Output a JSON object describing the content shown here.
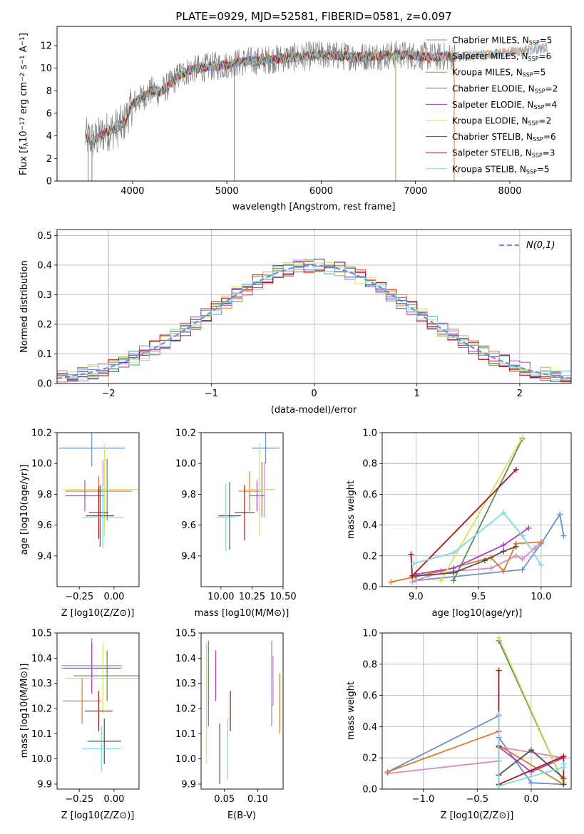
{
  "figure_title": "PLATE=0929, MJD=52581, FIBERID=0581, z=0.097",
  "colors": {
    "Chabrier MILES": "#6a8fd8",
    "Salpeter MILES": "#dd88bb",
    "Kroupa MILES": "#e07a2a",
    "Chabrier ELODIE": "#5f8a5f",
    "Salpeter ELODIE": "#b040c0",
    "Kroupa ELODIE": "#d4e25a",
    "Chabrier STELIB": "#505050",
    "Salpeter STELIB": "#aa1515",
    "Kroupa STELIB": "#7fd9e2",
    "data": "#808080",
    "gauss": "#6a8fd8"
  },
  "chart_data": [
    {
      "id": "spectrum",
      "type": "line",
      "xlabel": "wavelength [Angstrom, rest frame]",
      "ylabel": "Flux [f_λ 10^-17 erg cm^-2 s^-1 A^-1]",
      "ylabel_parts": {
        "main": "Flux [f",
        "sub": "λ",
        "mid": "10",
        "sup1": "−17",
        "unit": " erg cm",
        "sup2": "−2",
        "s": " s",
        "sup3": "−1",
        "a": " A",
        "sup4": "−1",
        "end": "]"
      },
      "xlim": [
        3200,
        8650
      ],
      "ylim": [
        0,
        13.7
      ],
      "xticks": [
        4000,
        5000,
        6000,
        7000,
        8000
      ],
      "yticks": [
        0,
        2,
        4,
        6,
        8,
        10,
        12
      ],
      "legend_position": "top-right",
      "legend": [
        {
          "label": "Chabrier MILES",
          "nssp": 5
        },
        {
          "label": "Salpeter MILES",
          "nssp": 6
        },
        {
          "label": "Kroupa MILES",
          "nssp": 5
        },
        {
          "label": "Chabrier ELODIE",
          "nssp": 2
        },
        {
          "label": "Salpeter ELODIE",
          "nssp": 4
        },
        {
          "label": "Kroupa ELODIE",
          "nssp": 2
        },
        {
          "label": "Chabrier STELIB",
          "nssp": 6
        },
        {
          "label": "Salpeter STELIB",
          "nssp": 3
        },
        {
          "label": "Kroupa STELIB",
          "nssp": 5
        }
      ],
      "nssp_label": "N",
      "nssp_sub": "SSP",
      "continuum": {
        "x": [
          3500,
          3600,
          3700,
          3800,
          3900,
          4000,
          4100,
          4200,
          4300,
          4400,
          4500,
          4600,
          4800,
          5000,
          5200,
          5400,
          5600,
          5800,
          6000,
          6200,
          6400,
          6600,
          6800,
          7000,
          7200,
          7400,
          7600,
          7800,
          8000,
          8200,
          8400
        ],
        "y": [
          3.9,
          3.6,
          4.3,
          4.6,
          5.0,
          6.8,
          7.4,
          8.0,
          7.9,
          8.6,
          9.4,
          9.8,
          10.1,
          10.3,
          10.6,
          10.7,
          10.9,
          11.0,
          11.2,
          11.1,
          11.0,
          11.1,
          11.2,
          11.1,
          11.0,
          11.0,
          11.1,
          11.2,
          11.4,
          11.6,
          11.8
        ]
      },
      "data_x_range": [
        3500,
        7420
      ]
    },
    {
      "id": "residuals",
      "type": "bar",
      "xlabel": "(data-model)/error",
      "ylabel": "Normed distribution",
      "xlim": [
        -2.5,
        2.5
      ],
      "ylim": [
        0,
        0.52
      ],
      "xticks": [
        -2,
        -1,
        0,
        1,
        2
      ],
      "yticks": [
        0.0,
        0.1,
        0.2,
        0.3,
        0.4,
        0.5
      ],
      "legend_label": "N(0,1)",
      "legend_position": "top-right",
      "grid": true
    },
    {
      "id": "age_vs_Z",
      "type": "scatter",
      "xlabel": "Z [log10(Z/Z⊙)]",
      "ylabel": "age [log10(age/yr)]",
      "xlim": [
        -0.41,
        0.18
      ],
      "ylim": [
        9.2,
        10.2
      ],
      "xticks": [
        -0.25,
        0.0
      ],
      "yticks": [
        9.4,
        9.6,
        9.8,
        10.0,
        10.2
      ],
      "points": [
        {
          "model": "Chabrier MILES",
          "x": -0.16,
          "xerr": 0.24,
          "y": 10.1,
          "yerr": 0.12
        },
        {
          "model": "Salpeter MILES",
          "x": -0.08,
          "xerr": 0.03,
          "y": 9.82,
          "yerr": 0.2
        },
        {
          "model": "Kroupa MILES",
          "x": -0.11,
          "xerr": 0.24,
          "y": 9.82,
          "yerr": 0.1
        },
        {
          "model": "Chabrier ELODIE",
          "x": -0.05,
          "xerr": 0.24,
          "y": 9.83,
          "yerr": 0.2
        },
        {
          "model": "Salpeter ELODIE",
          "x": -0.21,
          "xerr": 0.14,
          "y": 9.79,
          "yerr": 0.1
        },
        {
          "model": "Kroupa ELODIE",
          "x": -0.07,
          "xerr": 0.3,
          "y": 9.83,
          "yerr": 0.3
        },
        {
          "model": "Chabrier STELIB",
          "x": -0.1,
          "xerr": 0.1,
          "y": 9.66,
          "yerr": 0.2
        },
        {
          "model": "Salpeter STELIB",
          "x": -0.11,
          "xerr": 0.07,
          "y": 9.68,
          "yerr": 0.17
        },
        {
          "model": "Kroupa STELIB",
          "x": -0.08,
          "xerr": 0.15,
          "y": 9.65,
          "yerr": 0.2
        }
      ]
    },
    {
      "id": "age_vs_mass",
      "type": "scatter",
      "xlabel": "mass [log10(M/M⊙)]",
      "ylabel": "",
      "xlim": [
        9.84,
        10.5
      ],
      "ylim": [
        9.2,
        10.2
      ],
      "xticks": [
        10.0,
        10.25,
        10.5
      ],
      "yticks": [
        9.4,
        9.6,
        9.8,
        10.0,
        10.2
      ],
      "points": [
        {
          "model": "Chabrier MILES",
          "x": 10.36,
          "xerr": 0.11,
          "y": 10.1,
          "yerr": 0.1
        },
        {
          "model": "Salpeter MILES",
          "x": 10.35,
          "xerr": 0.05,
          "y": 9.83,
          "yerr": 0.18
        },
        {
          "model": "Kroupa MILES",
          "x": 10.23,
          "xerr": 0.09,
          "y": 9.82,
          "yerr": 0.13
        },
        {
          "model": "Chabrier ELODIE",
          "x": 10.33,
          "xerr": 0.1,
          "y": 9.83,
          "yerr": 0.18
        },
        {
          "model": "Salpeter ELODIE",
          "x": 10.29,
          "xerr": 0.06,
          "y": 9.79,
          "yerr": 0.1
        },
        {
          "model": "Kroupa ELODIE",
          "x": 10.31,
          "xerr": 0.13,
          "y": 9.83,
          "yerr": 0.3
        },
        {
          "model": "Chabrier STELIB",
          "x": 10.07,
          "xerr": 0.09,
          "y": 9.66,
          "yerr": 0.22
        },
        {
          "model": "Salpeter STELIB",
          "x": 10.19,
          "xerr": 0.08,
          "y": 9.68,
          "yerr": 0.18
        },
        {
          "model": "Kroupa STELIB",
          "x": 10.04,
          "xerr": 0.08,
          "y": 9.65,
          "yerr": 0.22
        }
      ]
    },
    {
      "id": "weight_vs_age",
      "type": "line",
      "xlabel": "age [log10(age/yr)]",
      "ylabel": "mass weight",
      "xlim": [
        8.73,
        10.24
      ],
      "ylim": [
        0.0,
        1.0
      ],
      "xticks": [
        9.0,
        9.5,
        10.0
      ],
      "yticks": [
        0.0,
        0.2,
        0.4,
        0.6,
        0.8,
        1.0
      ],
      "grid": true,
      "series": [
        {
          "model": "Chabrier MILES",
          "x": [
            9.0,
            9.85,
            10.0,
            10.15,
            10.18
          ],
          "y": [
            0.04,
            0.11,
            0.28,
            0.47,
            0.33
          ]
        },
        {
          "model": "Salpeter MILES",
          "x": [
            8.97,
            9.1,
            9.3,
            9.6,
            9.8,
            9.85,
            9.95,
            10.0
          ],
          "y": [
            0.03,
            0.07,
            0.1,
            0.12,
            0.2,
            0.18,
            0.25,
            0.29
          ]
        },
        {
          "model": "Kroupa MILES",
          "x": [
            8.8,
            8.97,
            9.2,
            9.6,
            9.7,
            9.8,
            10.0
          ],
          "y": [
            0.03,
            0.06,
            0.1,
            0.19,
            0.1,
            0.28,
            0.29
          ]
        },
        {
          "model": "Chabrier ELODIE",
          "x": [
            9.3,
            9.85
          ],
          "y": [
            0.04,
            0.96
          ]
        },
        {
          "model": "Salpeter ELODIE",
          "x": [
            9.0,
            9.3,
            9.7,
            9.9
          ],
          "y": [
            0.08,
            0.12,
            0.27,
            0.38
          ]
        },
        {
          "model": "Kroupa ELODIE",
          "x": [
            9.2,
            9.85
          ],
          "y": [
            0.04,
            0.97
          ]
        },
        {
          "model": "Chabrier STELIB",
          "x": [
            9.0,
            9.3,
            9.55,
            9.7,
            9.8
          ],
          "y": [
            0.07,
            0.09,
            0.17,
            0.23,
            0.26
          ]
        },
        {
          "model": "Salpeter STELIB",
          "x": [
            8.96,
            8.97,
            9.8
          ],
          "y": [
            0.21,
            0.07,
            0.76
          ]
        },
        {
          "model": "Kroupa STELIB",
          "x": [
            8.98,
            9.3,
            9.7,
            9.85,
            10.0
          ],
          "y": [
            0.15,
            0.22,
            0.48,
            0.33,
            0.14
          ]
        }
      ]
    },
    {
      "id": "mass_vs_Z",
      "type": "scatter",
      "xlabel": "Z [log10(Z/Z⊙)]",
      "ylabel": "mass [log10(M/M⊙)]",
      "xlim": [
        -0.41,
        0.18
      ],
      "ylim": [
        9.88,
        10.5
      ],
      "xticks": [
        -0.25,
        0.0
      ],
      "yticks": [
        9.9,
        10.0,
        10.1,
        10.2,
        10.3,
        10.4,
        10.5
      ],
      "points": [
        {
          "model": "Chabrier MILES",
          "x": -0.16,
          "xerr": 0.22,
          "y": 10.37,
          "yerr": 0.11
        },
        {
          "model": "Salpeter MILES",
          "x": -0.16,
          "xerr": 0.22,
          "y": 10.36,
          "yerr": 0.1
        },
        {
          "model": "Kroupa MILES",
          "x": -0.23,
          "xerr": 0.14,
          "y": 10.23,
          "yerr": 0.09
        },
        {
          "model": "Chabrier ELODIE",
          "x": -0.05,
          "xerr": 0.24,
          "y": 10.33,
          "yerr": 0.1
        },
        {
          "model": "Salpeter ELODIE",
          "x": -0.16,
          "xerr": 0.2,
          "y": 10.36,
          "yerr": 0.1
        },
        {
          "model": "Kroupa ELODIE",
          "x": -0.08,
          "xerr": 0.27,
          "y": 10.32,
          "yerr": 0.14
        },
        {
          "model": "Chabrier STELIB",
          "x": -0.07,
          "xerr": 0.12,
          "y": 10.07,
          "yerr": 0.09
        },
        {
          "model": "Salpeter STELIB",
          "x": -0.11,
          "xerr": 0.1,
          "y": 10.19,
          "yerr": 0.08
        },
        {
          "model": "Kroupa STELIB",
          "x": -0.09,
          "xerr": 0.14,
          "y": 10.04,
          "yerr": 0.09
        }
      ]
    },
    {
      "id": "mass_vs_EBV",
      "type": "scatter",
      "xlabel": "E(B-V)",
      "ylabel": "",
      "xlim": [
        0.015,
        0.138
      ],
      "ylim": [
        9.88,
        10.5
      ],
      "xticks": [
        0.05,
        0.1
      ],
      "yticks": [
        9.9,
        10.0,
        10.1,
        10.2,
        10.3,
        10.4,
        10.5
      ],
      "points": [
        {
          "model": "Chabrier MILES",
          "x": 0.121,
          "y": 10.3,
          "yerr": 0.17
        },
        {
          "model": "Salpeter MILES",
          "x": 0.123,
          "y": 10.31,
          "yerr": 0.1
        },
        {
          "model": "Kroupa MILES",
          "x": 0.133,
          "y": 10.22,
          "yerr": 0.12
        },
        {
          "model": "Chabrier ELODIE",
          "x": 0.026,
          "y": 10.3,
          "yerr": 0.17
        },
        {
          "model": "Salpeter ELODIE",
          "x": 0.037,
          "y": 10.33,
          "yerr": 0.1
        },
        {
          "model": "Kroupa ELODIE",
          "x": 0.023,
          "y": 10.22,
          "yerr": 0.24
        },
        {
          "model": "Chabrier STELIB",
          "x": 0.043,
          "y": 10.02,
          "yerr": 0.12
        },
        {
          "model": "Salpeter STELIB",
          "x": 0.059,
          "y": 10.19,
          "yerr": 0.08
        },
        {
          "model": "Kroupa STELIB",
          "x": 0.055,
          "y": 10.04,
          "yerr": 0.12
        }
      ]
    },
    {
      "id": "weight_vs_Z",
      "type": "line",
      "xlabel": "Z [log10(Z/Z⊙)]",
      "ylabel": "mass weight",
      "xlim": [
        -1.38,
        0.37
      ],
      "ylim": [
        0.0,
        1.0
      ],
      "xticks": [
        -1.0,
        -0.5,
        0.0
      ],
      "yticks": [
        0.0,
        0.2,
        0.4,
        0.6,
        0.8,
        1.0
      ],
      "grid": true,
      "series": [
        {
          "model": "Chabrier MILES",
          "x": [
            -1.33,
            -0.3,
            -0.3,
            0.0,
            0.3
          ],
          "y": [
            0.11,
            0.47,
            0.33,
            0.04,
            0.03
          ]
        },
        {
          "model": "Salpeter MILES",
          "x": [
            -1.33,
            -0.3,
            -0.3,
            0.3
          ],
          "y": [
            0.1,
            0.18,
            0.27,
            0.2
          ]
        },
        {
          "model": "Kroupa MILES",
          "x": [
            -1.33,
            -0.3,
            -0.3,
            0.3
          ],
          "y": [
            0.11,
            0.37,
            0.28,
            0.03
          ]
        },
        {
          "model": "Chabrier ELODIE",
          "x": [
            -0.3,
            0.3
          ],
          "y": [
            0.95,
            0.04
          ]
        },
        {
          "model": "Salpeter ELODIE",
          "x": [
            -0.3,
            -0.3,
            0.0,
            0.3
          ],
          "y": [
            0.37,
            0.27,
            0.11,
            0.2
          ]
        },
        {
          "model": "Kroupa ELODIE",
          "x": [
            -0.3,
            0.3
          ],
          "y": [
            0.97,
            0.04
          ]
        },
        {
          "model": "Chabrier STELIB",
          "x": [
            -0.3,
            -0.3,
            0.0,
            0.3,
            0.3
          ],
          "y": [
            0.27,
            0.09,
            0.25,
            0.07,
            0.03
          ]
        },
        {
          "model": "Salpeter STELIB",
          "x": [
            -0.3,
            -0.3,
            0.3,
            0.3
          ],
          "y": [
            0.76,
            0.03,
            0.21,
            0.07
          ]
        },
        {
          "model": "Kroupa STELIB",
          "x": [
            -0.3,
            -0.3,
            0.3,
            0.3
          ],
          "y": [
            0.48,
            0.02,
            0.14,
            0.16
          ]
        }
      ]
    }
  ]
}
